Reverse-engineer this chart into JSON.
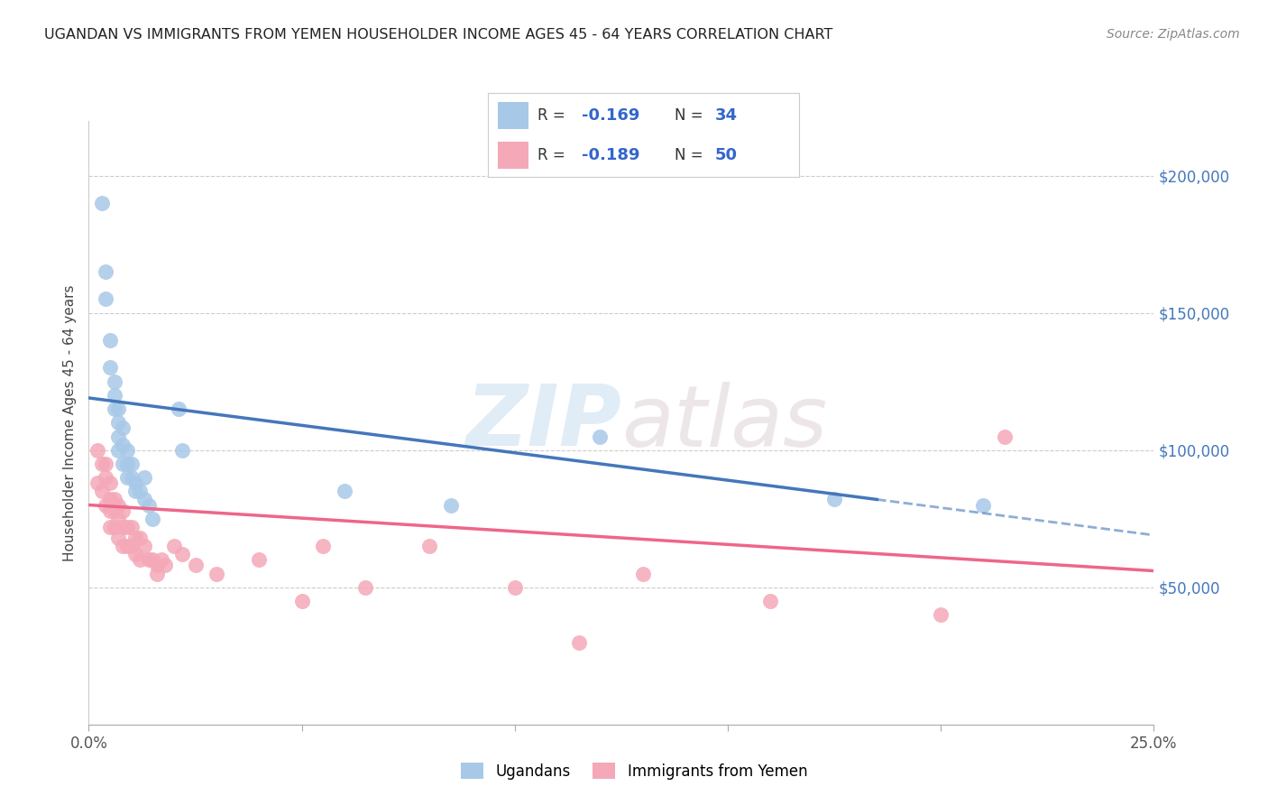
{
  "title": "UGANDAN VS IMMIGRANTS FROM YEMEN HOUSEHOLDER INCOME AGES 45 - 64 YEARS CORRELATION CHART",
  "source": "Source: ZipAtlas.com",
  "ylabel": "Householder Income Ages 45 - 64 years",
  "xlim": [
    0.0,
    0.25
  ],
  "ylim": [
    0,
    220000
  ],
  "yticks": [
    0,
    50000,
    100000,
    150000,
    200000
  ],
  "ytick_labels": [
    "",
    "$50,000",
    "$100,000",
    "$150,000",
    "$200,000"
  ],
  "xticks": [
    0.0,
    0.05,
    0.1,
    0.15,
    0.2,
    0.25
  ],
  "xtick_labels": [
    "0.0%",
    "",
    "",
    "",
    "",
    "25.0%"
  ],
  "background_color": "#ffffff",
  "grid_color": "#cccccc",
  "watermark": "ZIPatlas",
  "legend_label1": "Ugandans",
  "legend_label2": "Immigrants from Yemen",
  "r1": "-0.169",
  "n1": "34",
  "r2": "-0.189",
  "n2": "50",
  "blue_color": "#a8c8e8",
  "pink_color": "#f4a8b8",
  "blue_line_color": "#4477bb",
  "pink_line_color": "#ee6688",
  "blue_scatter_x": [
    0.003,
    0.004,
    0.004,
    0.005,
    0.005,
    0.006,
    0.006,
    0.006,
    0.007,
    0.007,
    0.007,
    0.007,
    0.008,
    0.008,
    0.008,
    0.009,
    0.009,
    0.009,
    0.01,
    0.01,
    0.011,
    0.011,
    0.012,
    0.013,
    0.013,
    0.014,
    0.015,
    0.021,
    0.022,
    0.06,
    0.085,
    0.12,
    0.175,
    0.21
  ],
  "blue_scatter_y": [
    190000,
    165000,
    155000,
    140000,
    130000,
    125000,
    120000,
    115000,
    115000,
    110000,
    105000,
    100000,
    108000,
    102000,
    95000,
    100000,
    95000,
    90000,
    95000,
    90000,
    88000,
    85000,
    85000,
    90000,
    82000,
    80000,
    75000,
    115000,
    100000,
    85000,
    80000,
    105000,
    82000,
    80000
  ],
  "pink_scatter_x": [
    0.002,
    0.002,
    0.003,
    0.003,
    0.004,
    0.004,
    0.004,
    0.005,
    0.005,
    0.005,
    0.005,
    0.006,
    0.006,
    0.006,
    0.007,
    0.007,
    0.007,
    0.008,
    0.008,
    0.008,
    0.009,
    0.009,
    0.01,
    0.01,
    0.011,
    0.011,
    0.012,
    0.012,
    0.013,
    0.014,
    0.015,
    0.016,
    0.016,
    0.017,
    0.018,
    0.02,
    0.022,
    0.025,
    0.03,
    0.04,
    0.05,
    0.055,
    0.065,
    0.08,
    0.1,
    0.115,
    0.13,
    0.16,
    0.2,
    0.215
  ],
  "pink_scatter_y": [
    100000,
    88000,
    95000,
    85000,
    95000,
    90000,
    80000,
    88000,
    82000,
    78000,
    72000,
    82000,
    78000,
    72000,
    80000,
    75000,
    68000,
    78000,
    72000,
    65000,
    72000,
    65000,
    72000,
    65000,
    68000,
    62000,
    68000,
    60000,
    65000,
    60000,
    60000,
    58000,
    55000,
    60000,
    58000,
    65000,
    62000,
    58000,
    55000,
    60000,
    45000,
    65000,
    50000,
    65000,
    50000,
    30000,
    55000,
    45000,
    40000,
    105000
  ]
}
